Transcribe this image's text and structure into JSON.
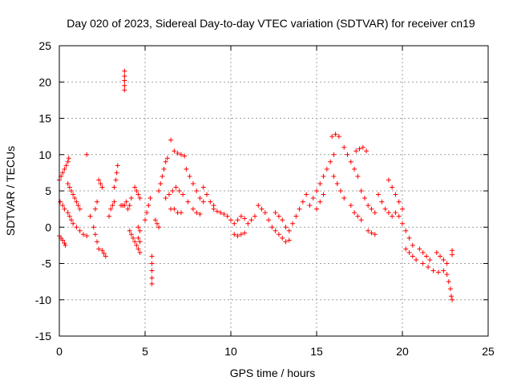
{
  "chart_data": {
    "type": "scatter",
    "title": "Day 020 of 2023, Sidereal Day-to-day VTEC variation (SDTVAR) for receiver cn19",
    "xlabel": "GPS time / hours",
    "ylabel": "SDTVAR / TECUs",
    "xlim": [
      0,
      25
    ],
    "ylim": [
      -15,
      25
    ],
    "x_ticks": [
      0,
      5,
      10,
      15,
      20,
      25
    ],
    "x_tick_labels": [
      "0",
      "5",
      "10",
      "15",
      "20",
      "25"
    ],
    "y_ticks": [
      -15,
      -10,
      -5,
      0,
      5,
      10,
      15,
      20,
      25
    ],
    "y_tick_labels": [
      "-15",
      "-10",
      "-5",
      "0",
      "5",
      "10",
      "15",
      "20",
      "25"
    ],
    "grid": true,
    "marker": "+",
    "marker_color": "#ff0000",
    "series": [
      {
        "name": "SDTVAR",
        "color": "#ff0000",
        "points": [
          [
            0.0,
            -1.2
          ],
          [
            0.1,
            -1.5
          ],
          [
            0.2,
            -1.8
          ],
          [
            0.3,
            -2.2
          ],
          [
            0.35,
            -2.5
          ],
          [
            0.0,
            6.5
          ],
          [
            0.1,
            7.0
          ],
          [
            0.2,
            7.5
          ],
          [
            0.3,
            8.0
          ],
          [
            0.4,
            8.5
          ],
          [
            0.5,
            9.0
          ],
          [
            0.55,
            9.5
          ],
          [
            0.05,
            3.5
          ],
          [
            0.2,
            3.0
          ],
          [
            0.3,
            2.5
          ],
          [
            0.5,
            2.0
          ],
          [
            0.6,
            1.5
          ],
          [
            0.7,
            1.0
          ],
          [
            0.5,
            6.0
          ],
          [
            0.6,
            5.5
          ],
          [
            0.7,
            5.0
          ],
          [
            0.8,
            4.5
          ],
          [
            0.9,
            4.0
          ],
          [
            1.0,
            3.5
          ],
          [
            1.1,
            3.0
          ],
          [
            1.2,
            2.5
          ],
          [
            0.8,
            0.5
          ],
          [
            1.0,
            0.0
          ],
          [
            1.2,
            -0.5
          ],
          [
            1.4,
            -1.0
          ],
          [
            1.6,
            -1.2
          ],
          [
            1.6,
            10.0
          ],
          [
            1.8,
            1.5
          ],
          [
            2.0,
            0.0
          ],
          [
            2.1,
            -1.0
          ],
          [
            2.2,
            -2.0
          ],
          [
            2.3,
            -3.0
          ],
          [
            2.1,
            2.5
          ],
          [
            2.2,
            3.5
          ],
          [
            2.3,
            6.5
          ],
          [
            2.4,
            6.0
          ],
          [
            2.5,
            5.5
          ],
          [
            2.5,
            -3.2
          ],
          [
            2.6,
            -3.6
          ],
          [
            2.7,
            -4.0
          ],
          [
            2.9,
            1.5
          ],
          [
            3.0,
            2.5
          ],
          [
            3.1,
            3.0
          ],
          [
            3.2,
            3.5
          ],
          [
            3.2,
            5.5
          ],
          [
            3.3,
            6.5
          ],
          [
            3.35,
            7.5
          ],
          [
            3.4,
            8.5
          ],
          [
            3.6,
            3.0
          ],
          [
            3.7,
            3.0
          ],
          [
            3.8,
            3.0
          ],
          [
            3.9,
            3.5
          ],
          [
            3.8,
            21.5
          ],
          [
            3.8,
            20.8
          ],
          [
            3.8,
            20.2
          ],
          [
            3.8,
            19.5
          ],
          [
            3.8,
            18.9
          ],
          [
            4.0,
            2.5
          ],
          [
            4.1,
            3.0
          ],
          [
            4.2,
            4.0
          ],
          [
            4.1,
            -0.5
          ],
          [
            4.2,
            -1.0
          ],
          [
            4.3,
            -1.5
          ],
          [
            4.4,
            -2.0
          ],
          [
            4.5,
            -2.5
          ],
          [
            4.6,
            -3.0
          ],
          [
            4.7,
            -3.5
          ],
          [
            4.4,
            5.5
          ],
          [
            4.5,
            5.0
          ],
          [
            4.6,
            4.5
          ],
          [
            4.7,
            4.0
          ],
          [
            4.6,
            0.0
          ],
          [
            4.7,
            -0.5
          ],
          [
            4.6,
            -1.5
          ],
          [
            4.7,
            -2.0
          ],
          [
            5.0,
            1.0
          ],
          [
            5.1,
            2.0
          ],
          [
            5.2,
            3.0
          ],
          [
            5.3,
            4.0
          ],
          [
            5.4,
            -4.0
          ],
          [
            5.4,
            -5.0
          ],
          [
            5.4,
            -6.0
          ],
          [
            5.4,
            -7.0
          ],
          [
            5.4,
            -7.8
          ],
          [
            5.6,
            1.0
          ],
          [
            5.7,
            0.5
          ],
          [
            5.8,
            0.0
          ],
          [
            5.8,
            5.0
          ],
          [
            5.9,
            6.0
          ],
          [
            6.0,
            7.0
          ],
          [
            6.1,
            8.0
          ],
          [
            6.2,
            9.0
          ],
          [
            6.3,
            9.5
          ],
          [
            6.5,
            12.0
          ],
          [
            6.7,
            10.5
          ],
          [
            6.9,
            10.2
          ],
          [
            7.1,
            10.0
          ],
          [
            7.3,
            9.8
          ],
          [
            6.2,
            4.0
          ],
          [
            6.4,
            4.5
          ],
          [
            6.6,
            5.0
          ],
          [
            6.8,
            5.5
          ],
          [
            7.0,
            5.0
          ],
          [
            6.5,
            2.5
          ],
          [
            6.7,
            2.5
          ],
          [
            6.9,
            2.0
          ],
          [
            7.1,
            2.0
          ],
          [
            7.4,
            8.0
          ],
          [
            7.6,
            7.0
          ],
          [
            7.8,
            6.0
          ],
          [
            8.0,
            5.0
          ],
          [
            8.2,
            4.0
          ],
          [
            8.4,
            3.5
          ],
          [
            7.2,
            4.5
          ],
          [
            7.5,
            3.5
          ],
          [
            7.8,
            2.5
          ],
          [
            8.0,
            2.0
          ],
          [
            8.2,
            1.8
          ],
          [
            8.4,
            5.5
          ],
          [
            8.6,
            4.5
          ],
          [
            8.8,
            3.5
          ],
          [
            9.0,
            3.0
          ],
          [
            9.0,
            2.5
          ],
          [
            9.2,
            2.2
          ],
          [
            9.4,
            2.0
          ],
          [
            9.6,
            1.8
          ],
          [
            9.8,
            1.5
          ],
          [
            10.0,
            1.0
          ],
          [
            10.2,
            0.5
          ],
          [
            10.4,
            1.0
          ],
          [
            10.6,
            1.5
          ],
          [
            10.8,
            1.2
          ],
          [
            10.2,
            -1.0
          ],
          [
            10.4,
            -1.2
          ],
          [
            10.6,
            -1.0
          ],
          [
            10.8,
            -0.8
          ],
          [
            11.0,
            0.5
          ],
          [
            11.2,
            1.0
          ],
          [
            11.4,
            1.5
          ],
          [
            11.6,
            3.0
          ],
          [
            11.8,
            2.5
          ],
          [
            12.0,
            2.0
          ],
          [
            12.2,
            1.0
          ],
          [
            12.4,
            0.0
          ],
          [
            12.6,
            -0.5
          ],
          [
            12.8,
            -1.0
          ],
          [
            12.6,
            2.0
          ],
          [
            12.8,
            1.5
          ],
          [
            13.0,
            1.0
          ],
          [
            13.2,
            0.0
          ],
          [
            13.4,
            -0.5
          ],
          [
            13.0,
            -1.5
          ],
          [
            13.2,
            -2.0
          ],
          [
            13.4,
            -1.8
          ],
          [
            13.6,
            0.5
          ],
          [
            13.8,
            1.5
          ],
          [
            14.0,
            2.5
          ],
          [
            14.2,
            3.5
          ],
          [
            14.4,
            4.5
          ],
          [
            14.6,
            3.0
          ],
          [
            14.8,
            4.0
          ],
          [
            15.0,
            5.0
          ],
          [
            15.2,
            6.0
          ],
          [
            15.4,
            7.0
          ],
          [
            15.0,
            2.5
          ],
          [
            15.2,
            3.5
          ],
          [
            15.4,
            4.5
          ],
          [
            15.6,
            8.0
          ],
          [
            15.8,
            9.0
          ],
          [
            16.0,
            10.0
          ],
          [
            15.9,
            12.5
          ],
          [
            16.1,
            12.8
          ],
          [
            16.3,
            12.5
          ],
          [
            16.0,
            7.0
          ],
          [
            16.2,
            6.0
          ],
          [
            16.4,
            5.0
          ],
          [
            16.6,
            4.0
          ],
          [
            16.6,
            11.0
          ],
          [
            16.8,
            10.0
          ],
          [
            17.0,
            9.0
          ],
          [
            17.2,
            8.0
          ],
          [
            17.4,
            7.0
          ],
          [
            17.3,
            10.5
          ],
          [
            17.5,
            10.8
          ],
          [
            17.7,
            11.0
          ],
          [
            17.9,
            10.5
          ],
          [
            17.0,
            3.0
          ],
          [
            17.2,
            2.0
          ],
          [
            17.4,
            1.5
          ],
          [
            17.6,
            1.0
          ],
          [
            17.6,
            5.0
          ],
          [
            17.8,
            4.0
          ],
          [
            18.0,
            3.0
          ],
          [
            18.2,
            2.5
          ],
          [
            18.4,
            2.0
          ],
          [
            18.0,
            -0.5
          ],
          [
            18.2,
            -0.8
          ],
          [
            18.4,
            -1.0
          ],
          [
            18.6,
            4.5
          ],
          [
            18.8,
            3.5
          ],
          [
            19.0,
            2.5
          ],
          [
            19.2,
            2.0
          ],
          [
            19.4,
            1.5
          ],
          [
            19.2,
            6.5
          ],
          [
            19.4,
            5.5
          ],
          [
            19.6,
            4.5
          ],
          [
            19.8,
            3.5
          ],
          [
            20.0,
            2.5
          ],
          [
            19.6,
            2.0
          ],
          [
            19.8,
            1.5
          ],
          [
            20.0,
            0.5
          ],
          [
            20.2,
            -0.5
          ],
          [
            20.4,
            -1.5
          ],
          [
            20.6,
            -2.5
          ],
          [
            20.2,
            -3.0
          ],
          [
            20.4,
            -3.5
          ],
          [
            20.6,
            -4.0
          ],
          [
            20.8,
            -4.5
          ],
          [
            21.0,
            -3.0
          ],
          [
            21.2,
            -3.5
          ],
          [
            21.4,
            -4.0
          ],
          [
            21.6,
            -4.5
          ],
          [
            21.2,
            -5.0
          ],
          [
            21.5,
            -5.5
          ],
          [
            21.8,
            -6.0
          ],
          [
            22.1,
            -6.2
          ],
          [
            22.0,
            -3.5
          ],
          [
            22.2,
            -4.0
          ],
          [
            22.4,
            -4.5
          ],
          [
            22.6,
            -5.0
          ],
          [
            22.4,
            -6.0
          ],
          [
            22.6,
            -6.5
          ],
          [
            22.7,
            -7.5
          ],
          [
            22.8,
            -8.5
          ],
          [
            22.85,
            -9.5
          ],
          [
            22.9,
            -10.0
          ],
          [
            22.9,
            -3.2
          ],
          [
            22.9,
            -3.8
          ]
        ]
      }
    ]
  }
}
